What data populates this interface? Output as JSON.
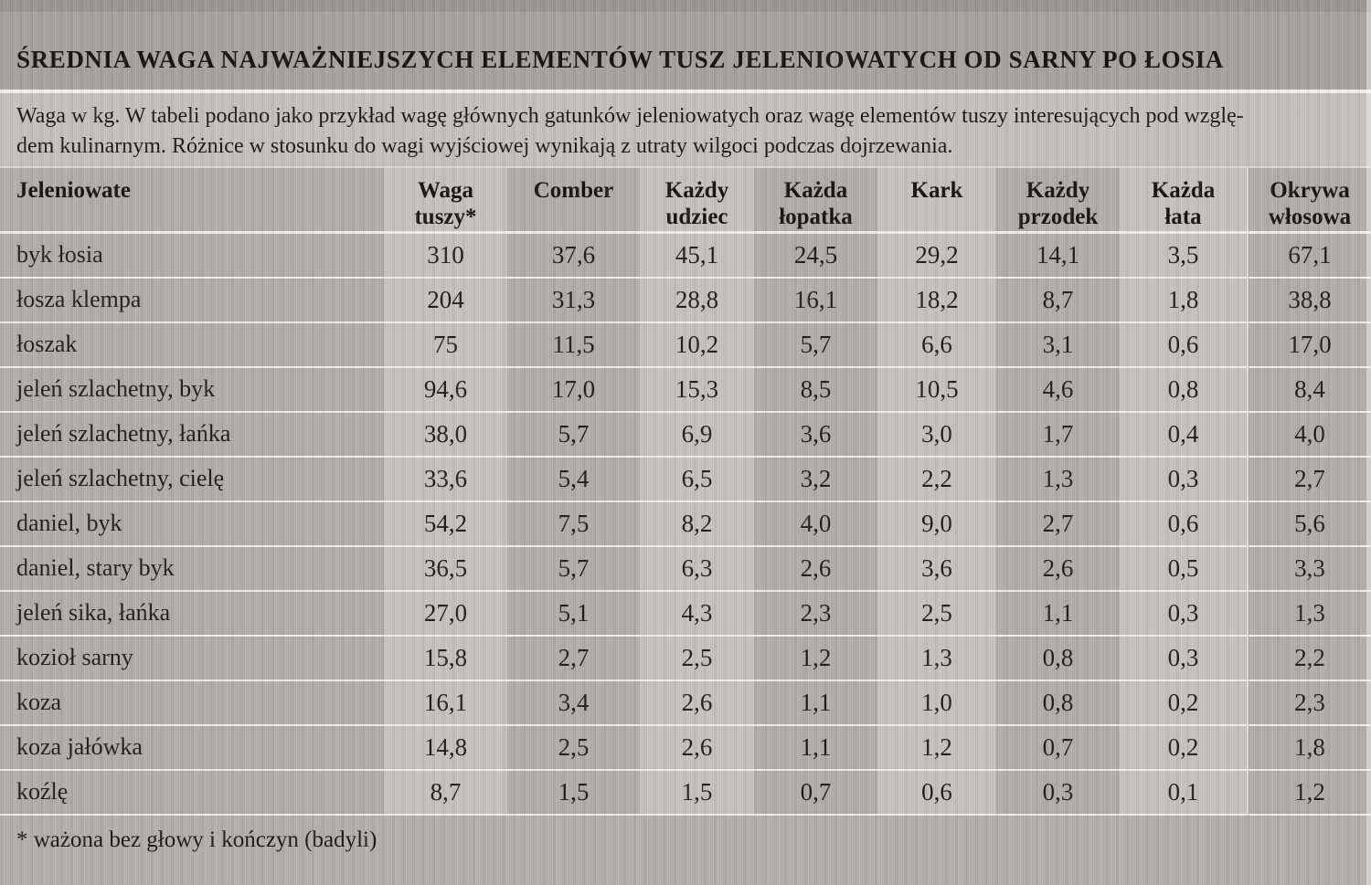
{
  "page": {
    "title": "ŚREDNIA WAGA NAJWAŻNIEJSZYCH ELEMENTÓW TUSZ JELENIOWATYCH OD SARNY PO ŁOSIA",
    "subtitle_line1": "Waga w kg. W tabeli podano jako przykład wagę głównych gatunków jeleniowatych oraz wagę elementów tuszy interesujących pod wzglę-",
    "subtitle_line2": "dem kulinarnym. Różnice w stosunku do wagi wyjściowej wynikają z utraty wilgoci podczas dojrzewania.",
    "footnote": "* ważona bez głowy i kończyn (badyli)"
  },
  "colors": {
    "band_dark": "#b2b0ad",
    "band_light": "#c7c5c2",
    "paper_header": "#a8a6a3",
    "separator": "#f2f1ee"
  },
  "table": {
    "unit": "kg",
    "columns": [
      "Jeleniowate",
      "Waga\ntuszy*",
      "Comber",
      "Każdy\nudziec",
      "Każda\nłopatka",
      "Kark",
      "Każdy\nprzodek",
      "Każda\nłata",
      "Okrywa\nwłosowa"
    ],
    "rows": [
      [
        "byk łosia",
        "310",
        "37,6",
        "45,1",
        "24,5",
        "29,2",
        "14,1",
        "3,5",
        "67,1"
      ],
      [
        "łosza klempa",
        "204",
        "31,3",
        "28,8",
        "16,1",
        "18,2",
        "8,7",
        "1,8",
        "38,8"
      ],
      [
        "łoszak",
        "75",
        "11,5",
        "10,2",
        "5,7",
        "6,6",
        "3,1",
        "0,6",
        "17,0"
      ],
      [
        "jeleń szlachetny, byk",
        "94,6",
        "17,0",
        "15,3",
        "8,5",
        "10,5",
        "4,6",
        "0,8",
        "8,4"
      ],
      [
        "jeleń szlachetny, łańka",
        "38,0",
        "5,7",
        "6,9",
        "3,6",
        "3,0",
        "1,7",
        "0,4",
        "4,0"
      ],
      [
        "jeleń szlachetny, cielę",
        "33,6",
        "5,4",
        "6,5",
        "3,2",
        "2,2",
        "1,3",
        "0,3",
        "2,7"
      ],
      [
        "daniel, byk",
        "54,2",
        "7,5",
        "8,2",
        "4,0",
        "9,0",
        "2,7",
        "0,6",
        "5,6"
      ],
      [
        "daniel, stary byk",
        "36,5",
        "5,7",
        "6,3",
        "2,6",
        "3,6",
        "2,6",
        "0,5",
        "3,3"
      ],
      [
        "jeleń sika, łańka",
        "27,0",
        "5,1",
        "4,3",
        "2,3",
        "2,5",
        "1,1",
        "0,3",
        "1,3"
      ],
      [
        "kozioł sarny",
        "15,8",
        "2,7",
        "2,5",
        "1,2",
        "1,3",
        "0,8",
        "0,3",
        "2,2"
      ],
      [
        "koza",
        "16,1",
        "3,4",
        "2,6",
        "1,1",
        "1,0",
        "0,8",
        "0,2",
        "2,3"
      ],
      [
        "koza jałówka",
        "14,8",
        "2,5",
        "2,6",
        "1,1",
        "1,2",
        "0,7",
        "0,2",
        "1,8"
      ],
      [
        "koźlę",
        "8,7",
        "1,5",
        "1,5",
        "0,7",
        "0,6",
        "0,3",
        "0,1",
        "1,2"
      ]
    ]
  }
}
